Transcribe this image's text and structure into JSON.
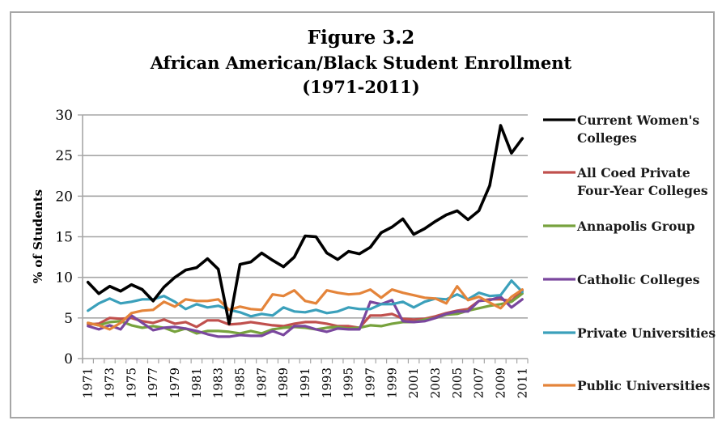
{
  "chart_data": {
    "type": "line",
    "title": [
      "Figure 3.2",
      "African American/Black Student Enrollment",
      "(1971-2011)"
    ],
    "xlabel": "",
    "ylabel": "% of Students",
    "ylim": [
      0,
      30
    ],
    "yticks": [
      0,
      5,
      10,
      15,
      20,
      25,
      30
    ],
    "grid": true,
    "legend_position": "right",
    "x": [
      1971,
      1972,
      1973,
      1974,
      1975,
      1976,
      1977,
      1978,
      1979,
      1980,
      1981,
      1982,
      1983,
      1984,
      1985,
      1986,
      1987,
      1988,
      1989,
      1990,
      1991,
      1992,
      1993,
      1994,
      1995,
      1996,
      1997,
      1998,
      1999,
      2000,
      2001,
      2002,
      2003,
      2004,
      2005,
      2006,
      2007,
      2008,
      2009,
      2010,
      2011
    ],
    "xtick_labels": [
      "1971",
      "1973",
      "1975",
      "1977",
      "1979",
      "1981",
      "1983",
      "1985",
      "1987",
      "1989",
      "1991",
      "1993",
      "1995",
      "1997",
      "1999",
      "2001",
      "2003",
      "2005",
      "2007",
      "2009",
      "2011"
    ],
    "series": [
      {
        "name": "Current Women's Colleges",
        "legend_lines": [
          "Current Women's",
          "Colleges"
        ],
        "color": "#000000",
        "values": [
          9.4,
          8.0,
          8.9,
          8.3,
          9.1,
          8.5,
          7.1,
          8.8,
          10.0,
          10.9,
          11.2,
          12.3,
          11.0,
          4.3,
          11.6,
          11.9,
          13.0,
          12.1,
          11.3,
          12.5,
          15.1,
          15.0,
          13.0,
          12.2,
          13.2,
          12.9,
          13.7,
          15.5,
          16.2,
          17.2,
          15.3,
          16.0,
          16.9,
          17.7,
          18.2,
          17.1,
          18.2,
          21.3,
          28.7,
          25.3,
          27.1
        ]
      },
      {
        "name": "All Coed Private Four-Year Colleges",
        "legend_lines": [
          "All Coed Private",
          "Four-Year Colleges"
        ],
        "color": "#c0504d",
        "values": [
          4.2,
          4.3,
          5.0,
          4.9,
          5.0,
          4.6,
          4.4,
          4.8,
          4.3,
          4.5,
          3.9,
          4.7,
          4.7,
          4.2,
          4.3,
          4.5,
          4.3,
          4.1,
          4.0,
          4.3,
          4.5,
          4.5,
          4.3,
          4.0,
          4.0,
          3.8,
          5.3,
          5.3,
          5.5,
          4.9,
          4.8,
          4.9,
          5.2,
          5.6,
          5.9,
          6.1,
          7.1,
          7.3,
          7.3,
          7.1,
          8.4
        ]
      },
      {
        "name": "Annapolis Group",
        "legend_lines": [
          "Annapolis Group"
        ],
        "color": "#77a23d",
        "values": [
          4.4,
          4.1,
          4.5,
          4.6,
          4.1,
          3.8,
          4.0,
          3.8,
          3.3,
          3.7,
          3.1,
          3.4,
          3.4,
          3.3,
          3.1,
          3.4,
          3.1,
          3.6,
          3.8,
          3.9,
          3.8,
          3.6,
          3.8,
          3.9,
          3.7,
          3.8,
          4.1,
          4.0,
          4.3,
          4.5,
          4.5,
          4.8,
          5.0,
          5.4,
          5.5,
          5.9,
          6.2,
          6.5,
          6.7,
          7.0,
          8.0
        ]
      },
      {
        "name": "Catholic Colleges",
        "legend_lines": [
          "Catholic Colleges"
        ],
        "color": "#7a479e",
        "values": [
          4.0,
          3.6,
          4.1,
          3.6,
          5.3,
          4.4,
          3.5,
          3.8,
          3.9,
          3.7,
          3.4,
          3.0,
          2.7,
          2.7,
          2.9,
          2.8,
          2.8,
          3.4,
          2.9,
          4.0,
          4.0,
          3.6,
          3.3,
          3.7,
          3.6,
          3.6,
          7.0,
          6.7,
          7.2,
          4.6,
          4.5,
          4.6,
          5.0,
          5.5,
          5.8,
          5.8,
          7.1,
          7.2,
          7.6,
          6.3,
          7.3
        ]
      },
      {
        "name": "Private Universities",
        "legend_lines": [
          "Private Universities"
        ],
        "color": "#3ba0bb",
        "values": [
          5.9,
          6.8,
          7.4,
          6.8,
          7.0,
          7.3,
          7.3,
          7.7,
          7.0,
          6.1,
          6.7,
          6.3,
          6.5,
          6.0,
          5.7,
          5.2,
          5.5,
          5.3,
          6.3,
          5.8,
          5.7,
          6.0,
          5.6,
          5.8,
          6.3,
          6.1,
          6.1,
          6.7,
          6.7,
          7.0,
          6.3,
          7.0,
          7.4,
          7.3,
          7.9,
          7.3,
          8.1,
          7.7,
          7.8,
          9.6,
          8.2
        ]
      },
      {
        "name": "Public Universities",
        "legend_lines": [
          "Public Universities"
        ],
        "color": "#e4843a",
        "values": [
          4.4,
          4.1,
          3.6,
          4.4,
          5.6,
          5.9,
          6.0,
          7.0,
          6.4,
          7.3,
          7.1,
          7.1,
          7.3,
          6.0,
          6.4,
          6.1,
          6.0,
          7.9,
          7.7,
          8.4,
          7.1,
          6.8,
          8.4,
          8.1,
          7.9,
          8.0,
          8.5,
          7.5,
          8.5,
          8.1,
          7.8,
          7.5,
          7.4,
          6.8,
          8.9,
          7.2,
          7.6,
          6.9,
          6.2,
          7.6,
          8.5
        ]
      }
    ]
  }
}
